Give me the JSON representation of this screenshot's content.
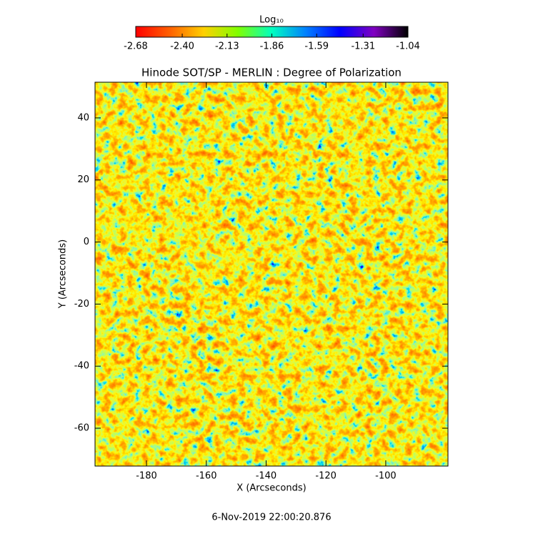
{
  "chart_data": {
    "type": "heatmap",
    "title": "Hinode SOT/SP - MERLIN : Degree of Polarization",
    "x_label": "X (Arcseconds)",
    "y_label": "Y (Arcseconds)",
    "xlim": [
      -197.2,
      -79.2
    ],
    "xticks": [
      -180,
      -160,
      -140,
      -120,
      -100
    ],
    "ylim": [
      -72.2,
      51.5
    ],
    "yticks": [
      -60,
      -40,
      -20,
      0,
      20,
      40
    ],
    "colorbar_label": "Log₁₀",
    "colorbar_lim": [
      -2.68,
      -1.04
    ],
    "colorbar_ticks": [
      -2.68,
      -2.4,
      -2.13,
      -1.86,
      -1.59,
      -1.31,
      -1.04
    ],
    "colormap": [
      "#ff0000",
      "#ff6000",
      "#ffd000",
      "#80ff00",
      "#00ffc0",
      "#0080ff",
      "#0000ff",
      "#8000c0",
      "#000000"
    ],
    "timestamp": "6-Nov-2019 22:00:20.876"
  }
}
